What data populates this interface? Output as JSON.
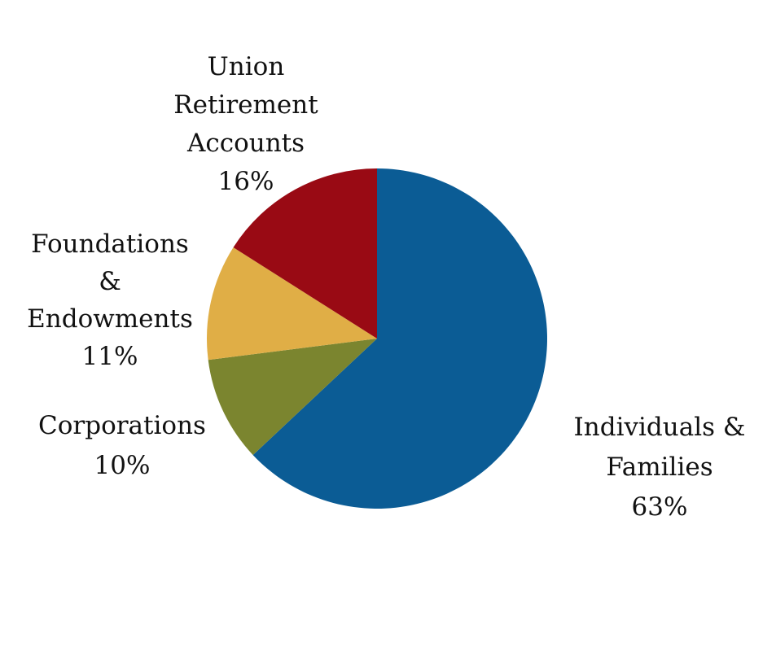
{
  "chart_data": {
    "type": "pie",
    "title": "",
    "slices": [
      {
        "label_lines": [
          "Individuals &",
          "Families"
        ],
        "percent_label": "63%",
        "value": 63,
        "color": "#0b5c95"
      },
      {
        "label_lines": [
          "Corporations"
        ],
        "percent_label": "10%",
        "value": 10,
        "color": "#7b852f"
      },
      {
        "label_lines": [
          "Foundations",
          "&",
          "Endowments"
        ],
        "percent_label": "11%",
        "value": 11,
        "color": "#e0ae46"
      },
      {
        "label_lines": [
          "Union",
          "Retirement",
          "Accounts"
        ],
        "percent_label": "16%",
        "value": 16,
        "color": "#990a14"
      }
    ]
  }
}
